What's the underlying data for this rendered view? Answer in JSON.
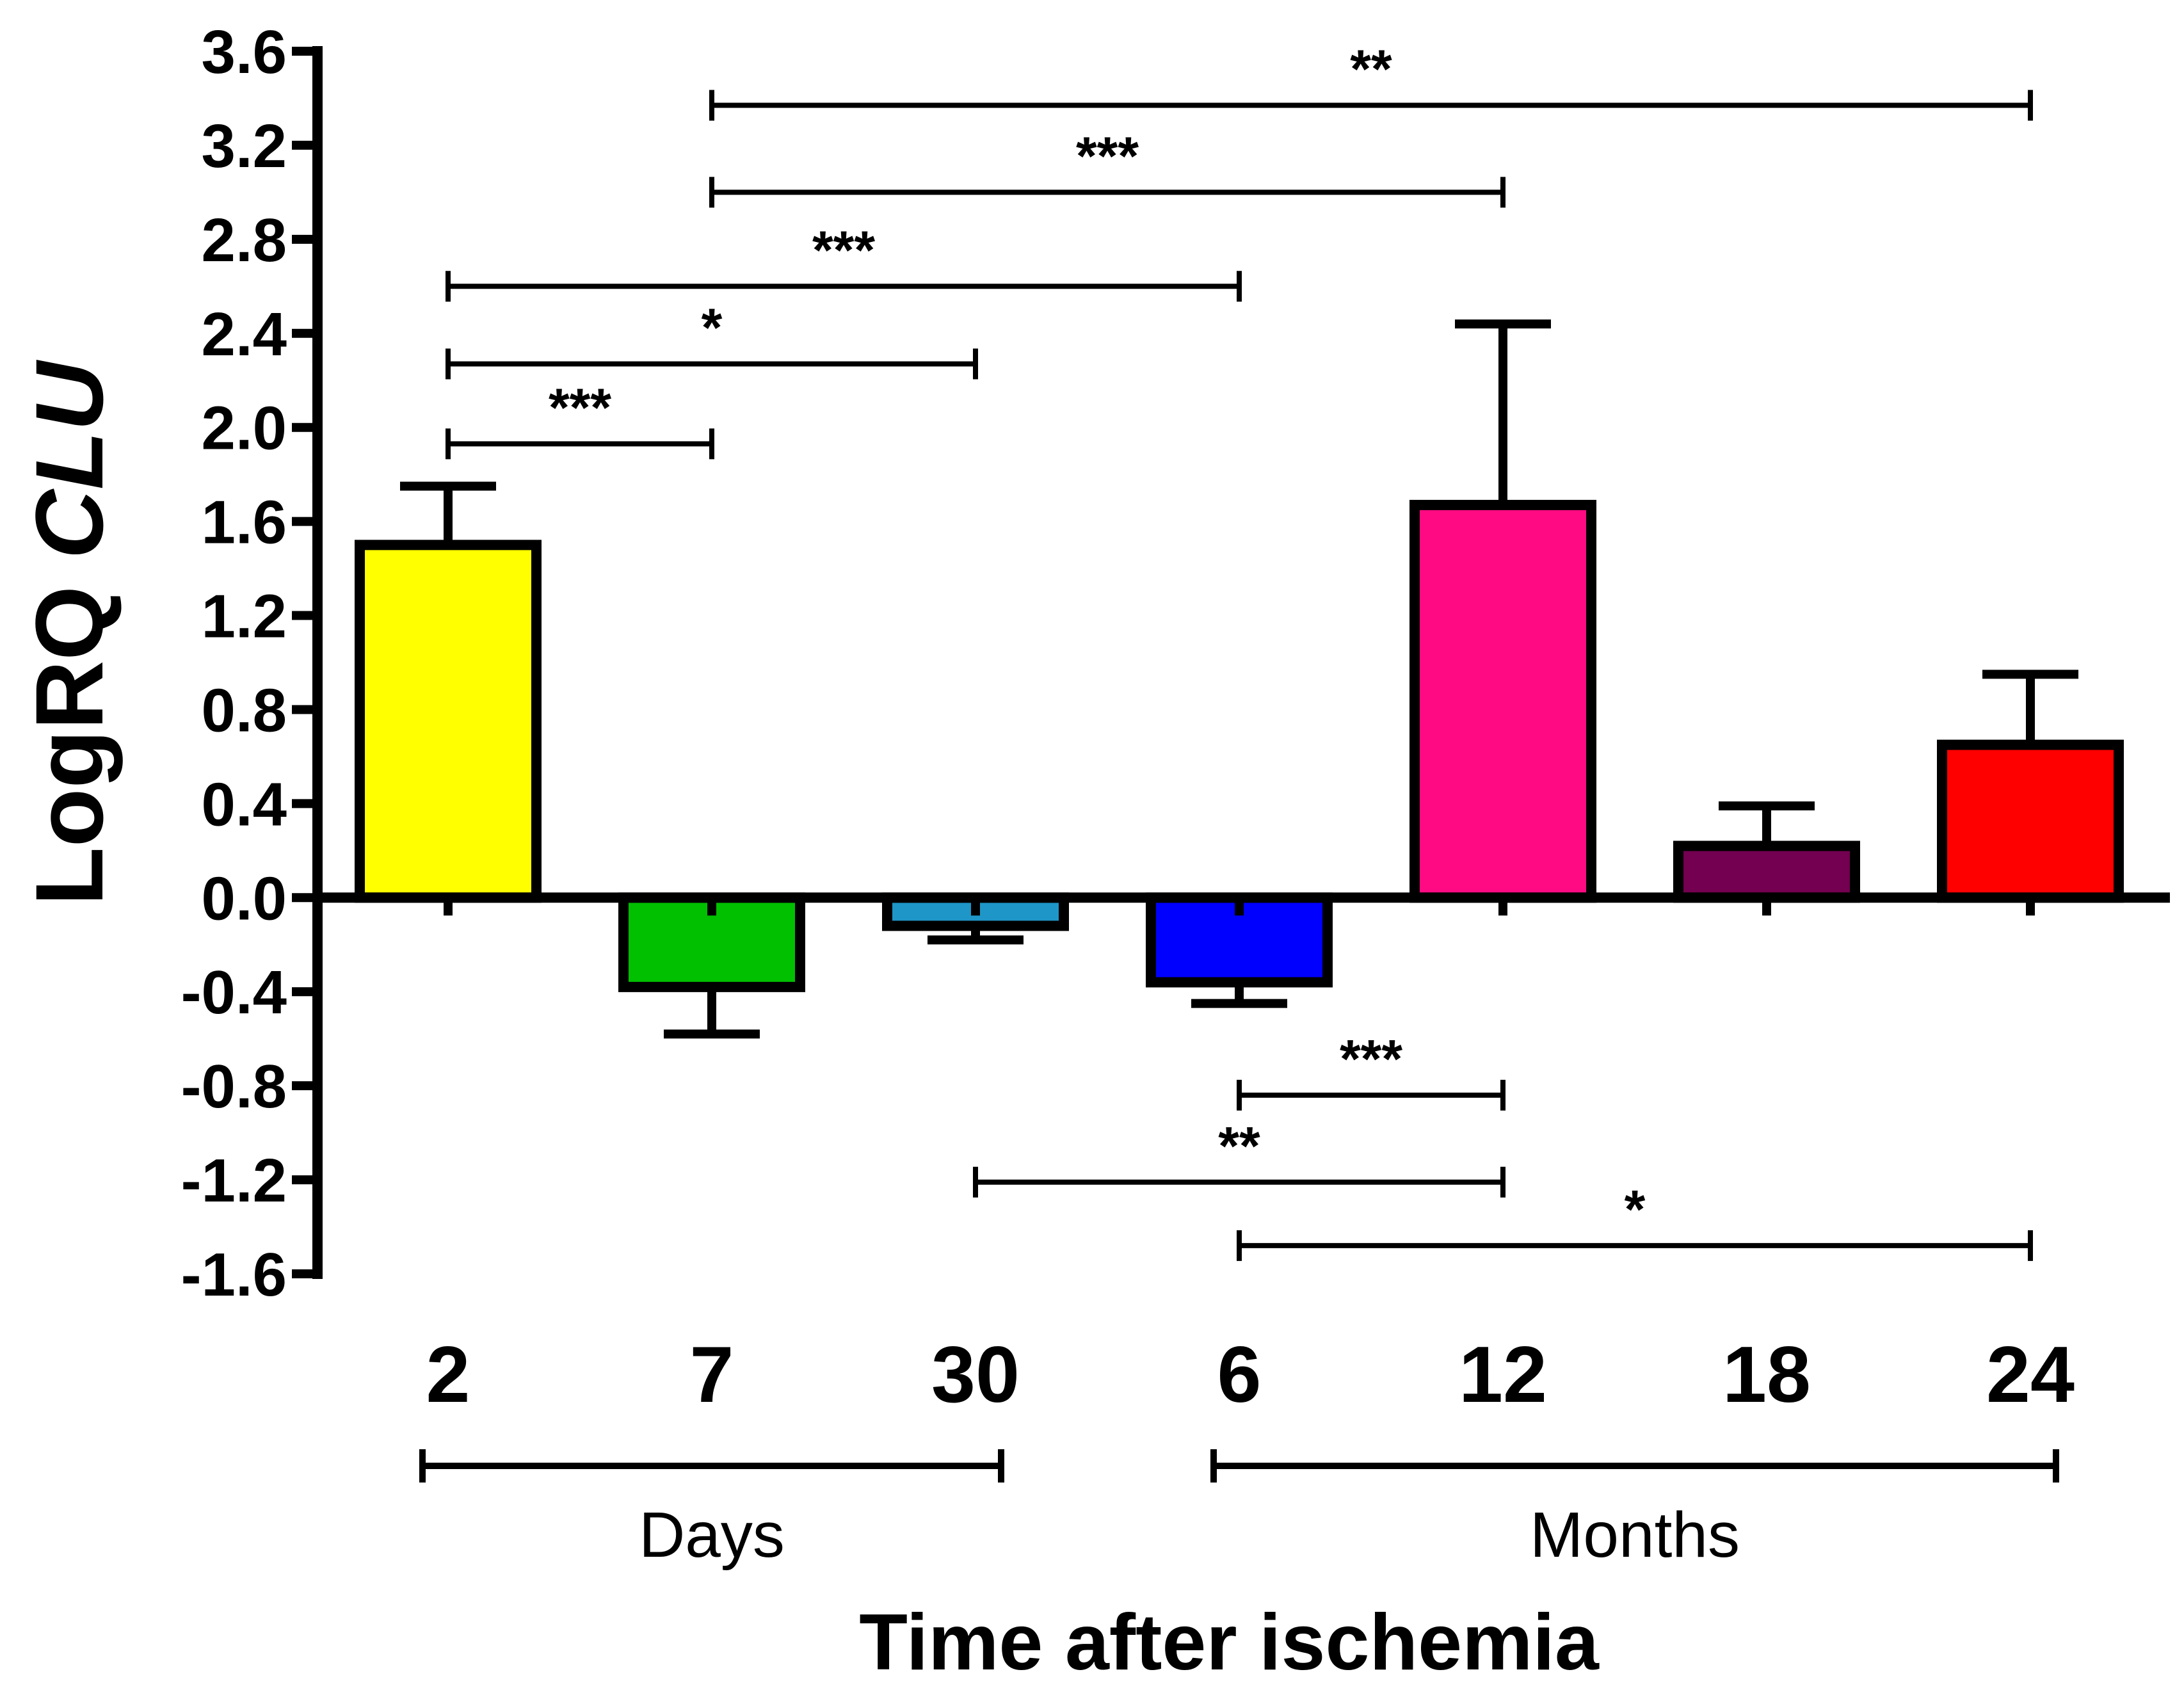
{
  "chart_data": {
    "type": "bar",
    "title": "",
    "ylabel_prefix": "LogRQ ",
    "ylabel_gene": "CLU",
    "xlabel": "Time after ischemia",
    "ylim": [
      -1.6,
      3.6
    ],
    "yticks": [
      3.6,
      3.2,
      2.8,
      2.4,
      2.0,
      1.6,
      1.2,
      0.8,
      0.4,
      0.0,
      -0.4,
      -0.8,
      -1.2,
      -1.6
    ],
    "ytick_labels": [
      "3.6",
      "3.2",
      "2.8",
      "2.4",
      "2.0",
      "1.6",
      "1.2",
      "0.8",
      "0.4",
      "0.0",
      "-0.4",
      "-0.8",
      "-1.2",
      "-1.6"
    ],
    "categories": [
      "2",
      "7",
      "30",
      "6",
      "12",
      "18",
      "24"
    ],
    "values": [
      1.5,
      -0.38,
      -0.12,
      -0.36,
      1.67,
      0.22,
      0.65
    ],
    "errors": [
      0.25,
      0.2,
      0.06,
      0.09,
      0.77,
      0.17,
      0.3
    ],
    "colors": [
      "#ffff00",
      "#00c000",
      "#1e96c8",
      "#0000ff",
      "#ff0a82",
      "#730050",
      "#ff0000"
    ],
    "groups": [
      {
        "label": "Days",
        "from": 0,
        "to": 2
      },
      {
        "label": "Months",
        "from": 3,
        "to": 6
      }
    ],
    "significance": [
      {
        "from": 1,
        "to": 6,
        "y": 3.37,
        "label": "**"
      },
      {
        "from": 1,
        "to": 4,
        "y": 3.0,
        "label": "***"
      },
      {
        "from": 0,
        "to": 3,
        "y": 2.6,
        "label": "***"
      },
      {
        "from": 0,
        "to": 2,
        "y": 2.27,
        "label": "*"
      },
      {
        "from": 0,
        "to": 1,
        "y": 1.93,
        "label": "***"
      },
      {
        "from": 3,
        "to": 4,
        "y": -0.84,
        "label": "***"
      },
      {
        "from": 2,
        "to": 4,
        "y": -1.21,
        "label": "**"
      },
      {
        "from": 3,
        "to": 6,
        "y": -1.48,
        "label": "*"
      }
    ]
  }
}
